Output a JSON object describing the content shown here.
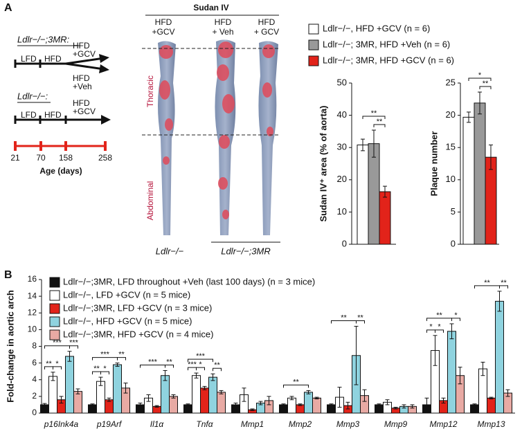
{
  "panel_a": {
    "label": "A",
    "timeline": {
      "group1_title": "Ldlr−/−;3MR:",
      "group1_lfd": "LFD",
      "group1_hfd": "HFD",
      "group1_gcv": [
        "HFD",
        "+GCV"
      ],
      "group1_veh": [
        "HFD",
        "+Veh"
      ],
      "group2_title": "Ldlr−/−:",
      "group2_lfd": "LFD",
      "group2_hfd": "HFD",
      "group2_gcv": [
        "HFD",
        "+GCV"
      ],
      "ages": [
        21,
        70,
        158,
        258
      ],
      "age_label": "Age (days)"
    },
    "photo": {
      "title": "Sudan IV",
      "columns": [
        [
          "HFD",
          "+GCV"
        ],
        [
          "HFD",
          "+ Veh"
        ],
        [
          "HFD",
          "+ GCV"
        ]
      ],
      "thoracic": "Thoracic",
      "abdominal": "Abdominal",
      "genotype1": "Ldlr−/−",
      "genotype2": "Ldlr−/−;3MR"
    }
  },
  "panel_b_label": "B",
  "chart_data": [
    {
      "type": "bar",
      "ylabel": "Sudan IV⁺ area (% of aorta)",
      "categories": [
        null
      ],
      "series": [
        {
          "name": "Ldlr−/−, HFD +GCV (n = 6)",
          "color": "#ffffff",
          "values": [
            30.8
          ],
          "errors": [
            1.8
          ]
        },
        {
          "name": "Ldlr−/−; 3MR, HFD +Veh (n = 6)",
          "color": "#999999",
          "values": [
            31.2
          ],
          "errors": [
            4.2
          ]
        },
        {
          "name": "Ldlr−/−; 3MR, HFD +GCV (n = 6)",
          "color": "#e2231a",
          "values": [
            16.3
          ],
          "errors": [
            1.7
          ]
        }
      ],
      "significance": [
        {
          "from": 1,
          "to": 2,
          "label": "**"
        },
        {
          "from": 0,
          "to": 2,
          "label": "**"
        }
      ],
      "ylim": [
        0,
        50
      ],
      "yticks": [
        0,
        10,
        20,
        30,
        40,
        50
      ]
    },
    {
      "type": "bar",
      "ylabel": "Plaque number",
      "categories": [
        null
      ],
      "series": [
        {
          "color": "#ffffff",
          "values": [
            19.7
          ],
          "errors": [
            0.8
          ]
        },
        {
          "color": "#999999",
          "values": [
            21.9
          ],
          "errors": [
            1.7
          ]
        },
        {
          "color": "#e2231a",
          "values": [
            13.5
          ],
          "errors": [
            1.9
          ]
        }
      ],
      "significance": [
        {
          "from": 1,
          "to": 2,
          "label": "**"
        },
        {
          "from": 0,
          "to": 2,
          "label": "*"
        }
      ],
      "ylim": [
        0,
        25
      ],
      "yticks": [
        0,
        5,
        10,
        15,
        20,
        25
      ]
    },
    {
      "type": "bar",
      "ylabel": "Fold-change in aortic arch",
      "categories": [
        "p16Ink4a",
        "p19Arf",
        "Il1α",
        "Tnfα",
        "Mmp1",
        "Mmp2",
        "Mmp3",
        "Mmp9",
        "Mmp12",
        "Mmp13"
      ],
      "series": [
        {
          "name": "Ldlr−/−;3MR, LFD throughout +Veh (last 100 days) (n = 3 mice)",
          "color": "#111111",
          "values": [
            1.0,
            1.0,
            1.0,
            1.0,
            1.0,
            1.0,
            1.0,
            1.0,
            1.0,
            1.0
          ],
          "errors": [
            0.15,
            0.1,
            0.2,
            0.1,
            0.2,
            0.1,
            0.1,
            0.1,
            0.8,
            0.1
          ]
        },
        {
          "name": "Ldlr−/−, LFD +GCV (n = 5 mice)",
          "color": "#ffffff",
          "values": [
            4.4,
            3.8,
            1.8,
            4.5,
            2.2,
            1.8,
            1.9,
            1.3,
            7.5,
            5.3
          ],
          "errors": [
            0.5,
            0.5,
            0.4,
            0.3,
            0.8,
            0.2,
            1.2,
            0.3,
            1.8,
            0.8
          ]
        },
        {
          "name": "Ldlr−/−;3MR, LFD +GCV (n = 3 mice)",
          "color": "#e2231a",
          "values": [
            1.6,
            1.6,
            0.8,
            3.0,
            0.4,
            1.0,
            0.9,
            0.6,
            1.5,
            1.8
          ],
          "errors": [
            0.4,
            0.2,
            0.1,
            0.2,
            0.1,
            0.1,
            0.4,
            0.1,
            0.3,
            0.1
          ]
        },
        {
          "name": "Ldlr−/−, HFD +GCV (n = 5 mice)",
          "color": "#8fd3df",
          "values": [
            6.8,
            5.8,
            4.5,
            4.3,
            1.2,
            2.5,
            6.9,
            0.8,
            9.8,
            13.4
          ],
          "errors": [
            0.6,
            0.2,
            0.6,
            0.4,
            0.2,
            0.2,
            3.5,
            0.2,
            0.9,
            1.2
          ]
        },
        {
          "name": "Ldlr−/−;3MR, HFD +GCV (n = 4 mice)",
          "color": "#e8aaa4",
          "values": [
            2.6,
            3.0,
            2.0,
            2.5,
            1.5,
            1.8,
            2.1,
            0.8,
            4.5,
            2.4
          ],
          "errors": [
            0.3,
            0.6,
            0.2,
            0.2,
            0.5,
            0.1,
            0.7,
            0.2,
            1.0,
            0.4
          ]
        }
      ],
      "significance": [
        [
          {
            "from": 0,
            "to": 1,
            "label": "**"
          },
          {
            "from": 1,
            "to": 2,
            "label": "*"
          },
          {
            "from": 3,
            "to": 4,
            "label": "***"
          },
          {
            "from": 0,
            "to": 3,
            "label": "***"
          }
        ],
        [
          {
            "from": 0,
            "to": 1,
            "label": "**"
          },
          {
            "from": 1,
            "to": 2,
            "label": "*"
          },
          {
            "from": 3,
            "to": 4,
            "label": "**"
          },
          {
            "from": 0,
            "to": 3,
            "label": "***"
          }
        ],
        [
          {
            "from": 3,
            "to": 4,
            "label": "**"
          },
          {
            "from": 0,
            "to": 3,
            "label": "***"
          }
        ],
        [
          {
            "from": 0,
            "to": 1,
            "label": "***"
          },
          {
            "from": 1,
            "to": 2,
            "label": "*"
          },
          {
            "from": 3,
            "to": 4,
            "label": "**"
          },
          {
            "from": 0,
            "to": 3,
            "label": "***"
          }
        ],
        [],
        [
          {
            "from": 0,
            "to": 3,
            "label": "**"
          }
        ],
        [
          {
            "from": 3,
            "to": 4,
            "label": "**"
          },
          {
            "from": 0,
            "to": 3,
            "label": "**"
          }
        ],
        [],
        [
          {
            "from": 0,
            "to": 1,
            "label": "*"
          },
          {
            "from": 1,
            "to": 2,
            "label": "*"
          },
          {
            "from": 3,
            "to": 4,
            "label": "*"
          },
          {
            "from": 0,
            "to": 3,
            "label": "**"
          }
        ],
        [
          {
            "from": 3,
            "to": 4,
            "label": "**"
          },
          {
            "from": 0,
            "to": 3,
            "label": "**"
          }
        ]
      ],
      "ylim": [
        0,
        16
      ],
      "yticks": [
        0,
        2,
        4,
        6,
        8,
        10,
        12,
        14,
        16
      ]
    }
  ]
}
